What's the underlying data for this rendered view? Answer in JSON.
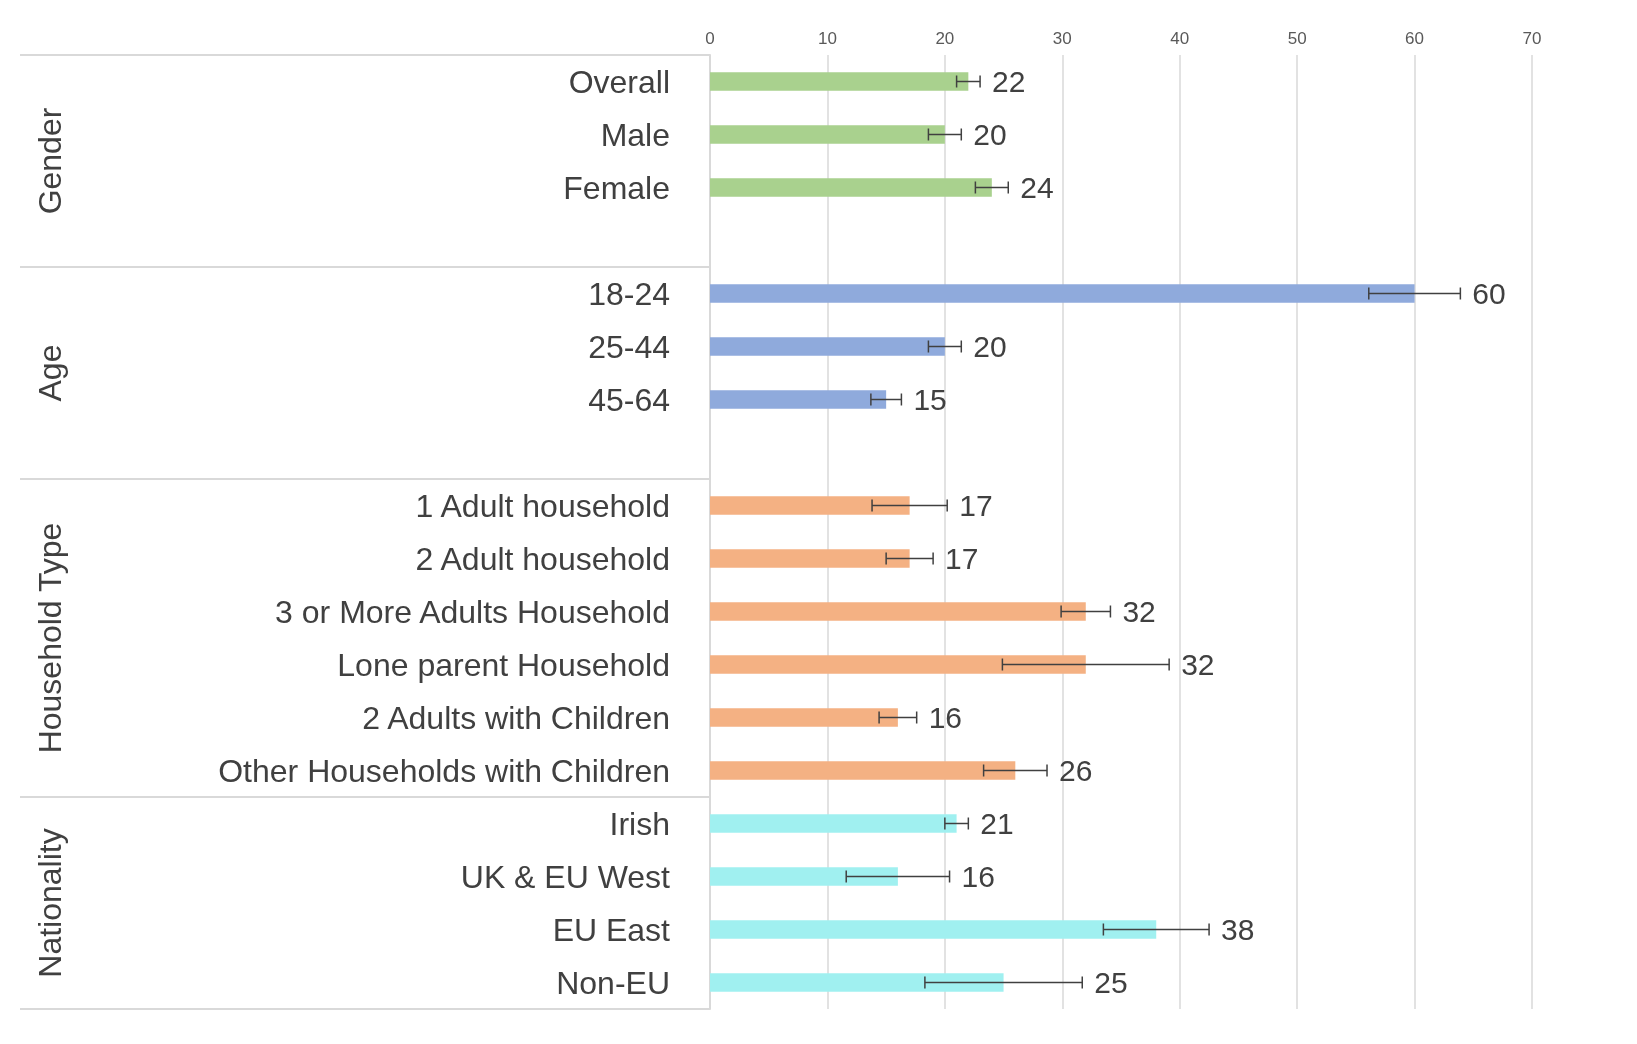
{
  "chart_data": {
    "type": "bar",
    "orientation": "horizontal",
    "categories": [
      "Overall",
      "Male",
      "Female",
      null,
      "18-24",
      "25-44",
      "45-64",
      null,
      "1 Adult household",
      "2 Adult household",
      "3 or More Adults Household",
      "Lone parent Household",
      "2 Adults with Children",
      "Other Households with Children",
      "Irish",
      "UK & EU West",
      "EU East",
      "Non-EU"
    ],
    "values": [
      22,
      20,
      24,
      null,
      60,
      20,
      15,
      null,
      17,
      17,
      32,
      32,
      16,
      26,
      21,
      16,
      38,
      25
    ],
    "errors": [
      1.0,
      1.4,
      1.4,
      null,
      3.9,
      1.4,
      1.3,
      null,
      3.2,
      2.0,
      2.1,
      7.1,
      1.6,
      2.7,
      1.0,
      4.4,
      4.5,
      6.7
    ],
    "colors": [
      "#a9d18e",
      "#a9d18e",
      "#a9d18e",
      null,
      "#8faadc",
      "#8faadc",
      "#8faadc",
      null,
      "#f4b183",
      "#f4b183",
      "#f4b183",
      "#f4b183",
      "#f4b183",
      "#f4b183",
      "#a0f0f0",
      "#a0f0f0",
      "#a0f0f0",
      "#a0f0f0"
    ],
    "xlim": [
      0,
      70
    ],
    "xticks": [
      0,
      10,
      20,
      30,
      40,
      50,
      60,
      70
    ],
    "grid": "x",
    "data_labels": true,
    "annotations": [
      "Gender",
      "Age",
      "Household Type",
      "Nationality"
    ]
  }
}
